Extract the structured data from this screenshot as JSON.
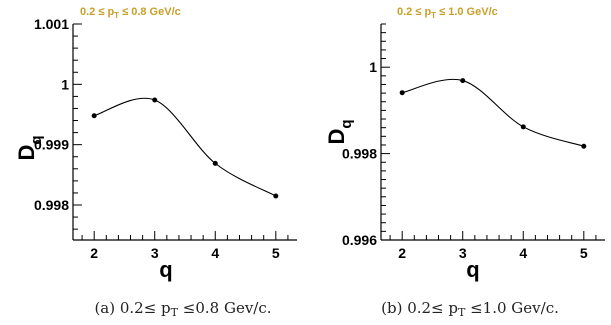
{
  "colors": {
    "range_label": "#c8a02a",
    "axis": "#000000",
    "curve": "#000000"
  },
  "chart_data": [
    {
      "type": "line",
      "range_label": {
        "prefix": "0.2 ≤ p",
        "sub": "T",
        "suffix": " ≤ 0.8 GeV/c"
      },
      "xlabel": "q",
      "ylabel": {
        "main": "D",
        "sub": "q"
      },
      "x": [
        2,
        3,
        4,
        5
      ],
      "y": [
        0.99948,
        0.99974,
        0.99869,
        0.99815
      ],
      "xlim": [
        1.65,
        5.35
      ],
      "ylim": [
        0.99742,
        1.001
      ],
      "xticks": [
        "2",
        "3",
        "4",
        "5"
      ],
      "yticks": [
        {
          "value": 1.001,
          "label": "1.001"
        },
        {
          "value": 1.0,
          "label": "1"
        },
        {
          "value": 0.999,
          "label": "0.999"
        },
        {
          "value": 0.998,
          "label": "0.998"
        }
      ],
      "minor_step": 0.0002,
      "caption": "(a) 0.2≤ p",
      "caption_sub": "T",
      "caption_end": " ≤0.8 Gev/c."
    },
    {
      "type": "line",
      "range_label": {
        "prefix": "0.2 ≤ p",
        "sub": "T",
        "suffix": " ≤ 1.0 GeV/c"
      },
      "xlabel": "q",
      "ylabel": {
        "main": "D",
        "sub": "q"
      },
      "x": [
        2,
        3,
        4,
        5
      ],
      "y": [
        0.99941,
        0.99969,
        0.99862,
        0.99817
      ],
      "xlim": [
        1.65,
        5.35
      ],
      "ylim": [
        0.996,
        1.001
      ],
      "xticks": [
        "2",
        "3",
        "4",
        "5"
      ],
      "yticks": [
        {
          "value": 1.0,
          "label": "1"
        },
        {
          "value": 0.998,
          "label": "0.998"
        },
        {
          "value": 0.996,
          "label": "0.996"
        }
      ],
      "minor_step": 0.0002,
      "caption": "(b) 0.2≤ p",
      "caption_sub": "T",
      "caption_end": " ≤1.0 Gev/c."
    }
  ]
}
